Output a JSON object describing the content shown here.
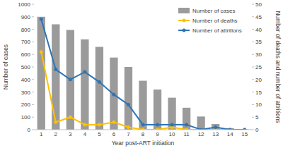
{
  "chart_data": {
    "type": "bar",
    "x_label": "Year post-ART initiation",
    "y_label": "Number of cases",
    "y2_label": "Number of deaths and number of attritions",
    "categories": [
      1,
      2,
      3,
      4,
      5,
      6,
      7,
      8,
      9,
      10,
      11,
      12,
      13,
      14,
      15
    ],
    "series": [
      {
        "name": "Number of cases",
        "type": "bar",
        "color": "#9b9b9b",
        "values": [
          900,
          840,
          795,
          720,
          660,
          575,
          500,
          390,
          320,
          255,
          175,
          105,
          45,
          12,
          3
        ]
      },
      {
        "name": "Number of deaths",
        "type": "line",
        "color": "#ffc000",
        "marker": "circle",
        "axis": "y2",
        "values": [
          31,
          3,
          5,
          2,
          2,
          3,
          1,
          0,
          0,
          1,
          0,
          0,
          0,
          0,
          0
        ]
      },
      {
        "name": "Number of attritions",
        "type": "line",
        "color": "#2e75b6",
        "marker": "circle",
        "axis": "y2",
        "values": [
          44,
          24,
          20,
          23,
          19,
          14,
          10,
          2,
          2,
          2,
          2,
          0,
          1,
          0,
          0
        ]
      }
    ],
    "ylim": [
      0,
      1000
    ],
    "yticks": [
      0,
      100,
      200,
      300,
      400,
      500,
      600,
      700,
      800,
      900,
      1000
    ],
    "y2lim": [
      0,
      50
    ],
    "y2ticks": [
      0,
      5,
      10,
      15,
      20,
      25,
      30,
      35,
      40,
      45,
      50
    ],
    "grid": false,
    "legend": "upper right"
  }
}
